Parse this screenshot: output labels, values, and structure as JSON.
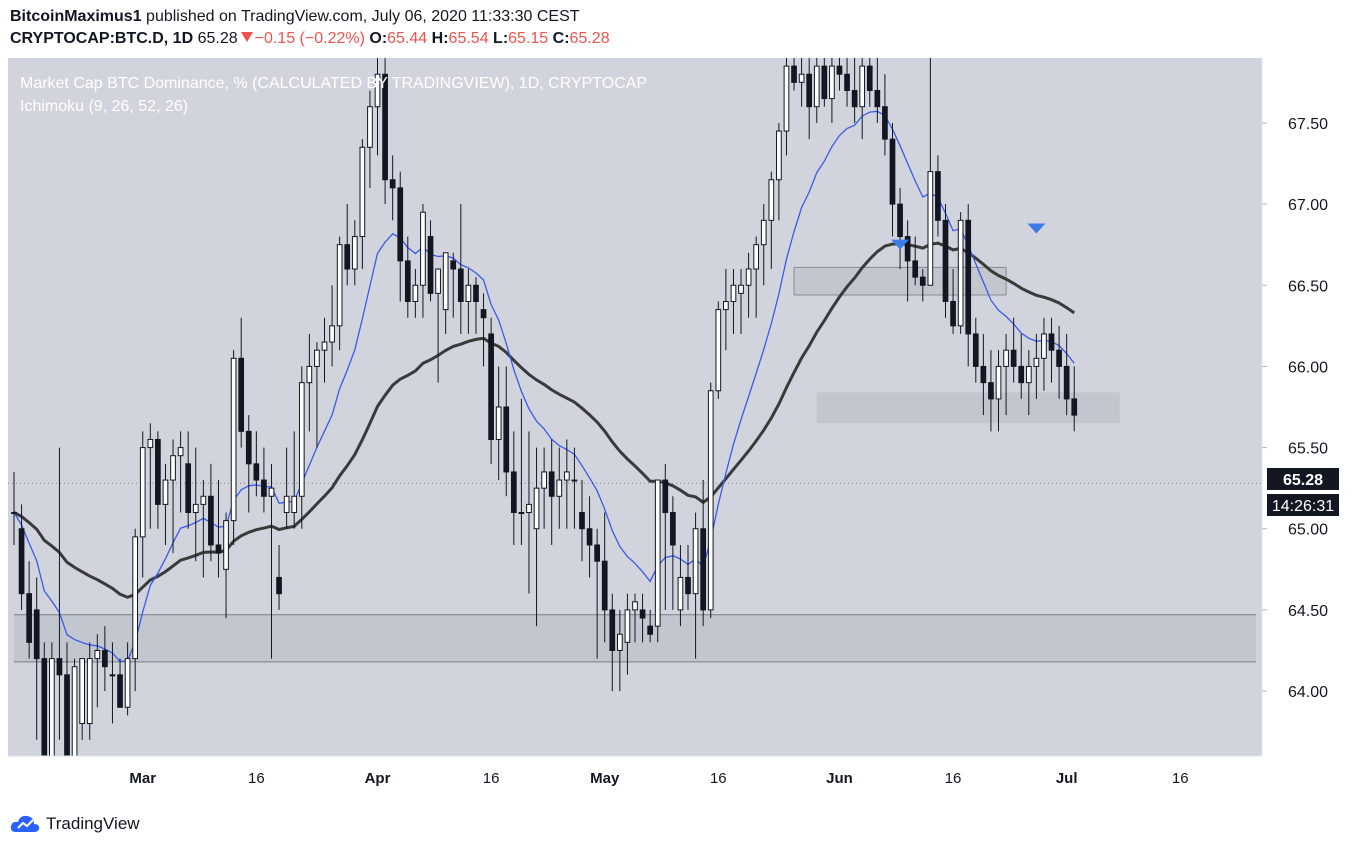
{
  "header": {
    "author": "BitcoinMaximus1",
    "published": "published on TradingView.com, July 06, 2020 11:33:30 CEST",
    "symbol": "CRYPTOCAP:BTC.D, 1D",
    "last": "65.28",
    "change": "−0.15 (−0.22%)",
    "o_label": "O:",
    "o_val": "65.44",
    "h_label": "H:",
    "h_val": "65.54",
    "l_label": "L:",
    "l_val": "65.15",
    "c_label": "C:",
    "c_val": "65.28"
  },
  "legend": {
    "title": "Market Cap BTC Dominance, % (CALCULATED BY TRADINGVIEW), 1D, CRYPTOCAP",
    "indicator": "Ichimoku (9, 26, 52, 26)"
  },
  "footer": {
    "brand": "TradingView",
    "logo_icon": "tradingview-cloud-icon"
  },
  "colors": {
    "plot_bg": "#d1d4dc",
    "up_candle": "#ffffff",
    "down_candle": "#131722",
    "baseline": "#3a3a3a",
    "conversion_line": "#3c5ae8",
    "zone": "#b7b9c3",
    "marker": "#3d7be6"
  },
  "price_label": "65.28",
  "countdown_label": "14:26:31",
  "chart_data": {
    "type": "candlestick",
    "title": "Market Cap BTC Dominance, % (CALCULATED BY TRADINGVIEW), 1D, CRYPTOCAP",
    "ylim": [
      63.6,
      67.9
    ],
    "y_ticks": [
      "64.00",
      "64.50",
      "65.00",
      "65.50",
      "66.00",
      "66.50",
      "67.00",
      "67.50"
    ],
    "x_ticks": [
      {
        "date": "2020-03-01",
        "label": "Mar"
      },
      {
        "date": "2020-03-16",
        "label": "16"
      },
      {
        "date": "2020-04-01",
        "label": "Apr"
      },
      {
        "date": "2020-04-16",
        "label": "16"
      },
      {
        "date": "2020-05-01",
        "label": "May"
      },
      {
        "date": "2020-05-16",
        "label": "16"
      },
      {
        "date": "2020-06-01",
        "label": "Jun"
      },
      {
        "date": "2020-06-16",
        "label": "16"
      },
      {
        "date": "2020-07-01",
        "label": "Jul"
      },
      {
        "date": "2020-07-16",
        "label": "16"
      }
    ],
    "xlim": [
      "2020-02-13",
      "2020-07-26"
    ],
    "candles": [
      {
        "d": "2020-02-13",
        "o": 65.1,
        "h": 65.35,
        "l": 64.9,
        "c": 65.1
      },
      {
        "d": "2020-02-14",
        "o": 65.0,
        "h": 65.15,
        "l": 64.5,
        "c": 64.6
      },
      {
        "d": "2020-02-15",
        "o": 64.6,
        "h": 64.8,
        "l": 64.2,
        "c": 64.3
      },
      {
        "d": "2020-02-16",
        "o": 64.5,
        "h": 64.7,
        "l": 63.7,
        "c": 64.2
      },
      {
        "d": "2020-02-17",
        "o": 64.2,
        "h": 64.3,
        "l": 63.6,
        "c": 63.6
      },
      {
        "d": "2020-02-18",
        "o": 63.6,
        "h": 64.3,
        "l": 63.6,
        "c": 64.2
      },
      {
        "d": "2020-02-19",
        "o": 64.2,
        "h": 65.5,
        "l": 63.7,
        "c": 64.1
      },
      {
        "d": "2020-02-20",
        "o": 64.1,
        "h": 64.3,
        "l": 63.6,
        "c": 63.6
      },
      {
        "d": "2020-02-21",
        "o": 63.6,
        "h": 64.2,
        "l": 63.6,
        "c": 64.15
      },
      {
        "d": "2020-02-22",
        "o": 63.8,
        "h": 64.2,
        "l": 63.7,
        "c": 64.2
      },
      {
        "d": "2020-02-23",
        "o": 63.8,
        "h": 64.3,
        "l": 63.7,
        "c": 64.2
      },
      {
        "d": "2020-02-24",
        "o": 64.2,
        "h": 64.35,
        "l": 63.9,
        "c": 64.25
      },
      {
        "d": "2020-02-25",
        "o": 64.25,
        "h": 64.4,
        "l": 64.0,
        "c": 64.15
      },
      {
        "d": "2020-02-26",
        "o": 64.1,
        "h": 64.3,
        "l": 63.8,
        "c": 64.1
      },
      {
        "d": "2020-02-27",
        "o": 64.1,
        "h": 64.2,
        "l": 63.9,
        "c": 63.9
      },
      {
        "d": "2020-02-28",
        "o": 63.9,
        "h": 64.3,
        "l": 63.85,
        "c": 64.2
      },
      {
        "d": "2020-02-29",
        "o": 64.2,
        "h": 65.0,
        "l": 64.0,
        "c": 64.95
      },
      {
        "d": "2020-03-01",
        "o": 64.95,
        "h": 65.6,
        "l": 64.7,
        "c": 65.5
      },
      {
        "d": "2020-03-02",
        "o": 65.5,
        "h": 65.65,
        "l": 65.0,
        "c": 65.55
      },
      {
        "d": "2020-03-03",
        "o": 65.55,
        "h": 65.6,
        "l": 65.0,
        "c": 65.15
      },
      {
        "d": "2020-03-04",
        "o": 65.15,
        "h": 65.4,
        "l": 64.9,
        "c": 65.3
      },
      {
        "d": "2020-03-05",
        "o": 65.3,
        "h": 65.55,
        "l": 64.85,
        "c": 65.45
      },
      {
        "d": "2020-03-06",
        "o": 65.45,
        "h": 65.6,
        "l": 65.1,
        "c": 65.5
      },
      {
        "d": "2020-03-07",
        "o": 65.4,
        "h": 65.6,
        "l": 65.0,
        "c": 65.1
      },
      {
        "d": "2020-03-08",
        "o": 65.1,
        "h": 65.5,
        "l": 64.8,
        "c": 65.15
      },
      {
        "d": "2020-03-09",
        "o": 65.15,
        "h": 65.3,
        "l": 64.7,
        "c": 65.2
      },
      {
        "d": "2020-03-10",
        "o": 65.2,
        "h": 65.4,
        "l": 64.8,
        "c": 64.9
      },
      {
        "d": "2020-03-11",
        "o": 64.9,
        "h": 65.3,
        "l": 64.7,
        "c": 64.85
      },
      {
        "d": "2020-03-12",
        "o": 64.75,
        "h": 65.1,
        "l": 64.45,
        "c": 65.05
      },
      {
        "d": "2020-03-13",
        "o": 65.05,
        "h": 66.1,
        "l": 64.9,
        "c": 66.05
      },
      {
        "d": "2020-03-14",
        "o": 66.05,
        "h": 66.3,
        "l": 65.5,
        "c": 65.6
      },
      {
        "d": "2020-03-15",
        "o": 65.6,
        "h": 65.7,
        "l": 65.1,
        "c": 65.4
      },
      {
        "d": "2020-03-16",
        "o": 65.4,
        "h": 65.6,
        "l": 65.2,
        "c": 65.3
      },
      {
        "d": "2020-03-17",
        "o": 65.3,
        "h": 65.5,
        "l": 65.1,
        "c": 65.2
      },
      {
        "d": "2020-03-18",
        "o": 65.2,
        "h": 65.4,
        "l": 64.2,
        "c": 65.25
      },
      {
        "d": "2020-03-19",
        "o": 64.7,
        "h": 64.9,
        "l": 64.5,
        "c": 64.6
      },
      {
        "d": "2020-03-20",
        "o": 65.1,
        "h": 65.5,
        "l": 65.0,
        "c": 65.2
      },
      {
        "d": "2020-03-21",
        "o": 65.1,
        "h": 65.6,
        "l": 65.0,
        "c": 65.2
      },
      {
        "d": "2020-03-22",
        "o": 65.2,
        "h": 66.0,
        "l": 65.0,
        "c": 65.9
      },
      {
        "d": "2020-03-23",
        "o": 65.9,
        "h": 66.2,
        "l": 65.6,
        "c": 66.0
      },
      {
        "d": "2020-03-24",
        "o": 66.0,
        "h": 66.15,
        "l": 65.5,
        "c": 66.1
      },
      {
        "d": "2020-03-25",
        "o": 66.1,
        "h": 66.3,
        "l": 65.9,
        "c": 66.15
      },
      {
        "d": "2020-03-26",
        "o": 66.15,
        "h": 66.5,
        "l": 66.0,
        "c": 66.25
      },
      {
        "d": "2020-03-27",
        "o": 66.25,
        "h": 66.8,
        "l": 66.1,
        "c": 66.75
      },
      {
        "d": "2020-03-28",
        "o": 66.75,
        "h": 67.0,
        "l": 66.5,
        "c": 66.6
      },
      {
        "d": "2020-03-29",
        "o": 66.6,
        "h": 66.9,
        "l": 66.5,
        "c": 66.8
      },
      {
        "d": "2020-03-30",
        "o": 66.8,
        "h": 67.4,
        "l": 66.6,
        "c": 67.35
      },
      {
        "d": "2020-03-31",
        "o": 67.35,
        "h": 67.7,
        "l": 67.1,
        "c": 67.6
      },
      {
        "d": "2020-04-01",
        "o": 67.6,
        "h": 67.9,
        "l": 67.3,
        "c": 67.8
      },
      {
        "d": "2020-04-02",
        "o": 67.8,
        "h": 67.9,
        "l": 67.0,
        "c": 67.15
      },
      {
        "d": "2020-04-03",
        "o": 67.15,
        "h": 67.3,
        "l": 66.9,
        "c": 67.1
      },
      {
        "d": "2020-04-04",
        "o": 67.1,
        "h": 67.2,
        "l": 66.4,
        "c": 66.65
      },
      {
        "d": "2020-04-05",
        "o": 66.65,
        "h": 66.8,
        "l": 66.3,
        "c": 66.4
      },
      {
        "d": "2020-04-06",
        "o": 66.4,
        "h": 66.6,
        "l": 66.3,
        "c": 66.5
      },
      {
        "d": "2020-04-07",
        "o": 66.5,
        "h": 67.0,
        "l": 66.3,
        "c": 66.95
      },
      {
        "d": "2020-04-08",
        "o": 66.8,
        "h": 66.9,
        "l": 66.4,
        "c": 66.45
      },
      {
        "d": "2020-04-09",
        "o": 66.45,
        "h": 66.6,
        "l": 65.9,
        "c": 66.6
      },
      {
        "d": "2020-04-10",
        "o": 66.35,
        "h": 66.7,
        "l": 66.2,
        "c": 66.7
      },
      {
        "d": "2020-04-11",
        "o": 66.65,
        "h": 66.7,
        "l": 66.3,
        "c": 66.6
      },
      {
        "d": "2020-04-12",
        "o": 66.6,
        "h": 67.0,
        "l": 66.2,
        "c": 66.4
      },
      {
        "d": "2020-04-13",
        "o": 66.4,
        "h": 66.6,
        "l": 66.2,
        "c": 66.5
      },
      {
        "d": "2020-04-14",
        "o": 66.5,
        "h": 66.55,
        "l": 66.2,
        "c": 66.4
      },
      {
        "d": "2020-04-15",
        "o": 66.35,
        "h": 66.45,
        "l": 66.0,
        "c": 66.3
      },
      {
        "d": "2020-04-16",
        "o": 66.2,
        "h": 66.3,
        "l": 65.4,
        "c": 65.55
      },
      {
        "d": "2020-04-17",
        "o": 65.55,
        "h": 66.0,
        "l": 65.3,
        "c": 65.75
      },
      {
        "d": "2020-04-18",
        "o": 65.75,
        "h": 66.0,
        "l": 65.2,
        "c": 65.35
      },
      {
        "d": "2020-04-19",
        "o": 65.35,
        "h": 65.6,
        "l": 64.9,
        "c": 65.1
      },
      {
        "d": "2020-04-20",
        "o": 65.1,
        "h": 65.8,
        "l": 64.9,
        "c": 65.1
      },
      {
        "d": "2020-04-21",
        "o": 65.1,
        "h": 65.6,
        "l": 64.6,
        "c": 65.15
      },
      {
        "d": "2020-04-22",
        "o": 65.0,
        "h": 65.5,
        "l": 64.4,
        "c": 65.25
      },
      {
        "d": "2020-04-23",
        "o": 65.25,
        "h": 65.5,
        "l": 65.0,
        "c": 65.35
      },
      {
        "d": "2020-04-24",
        "o": 65.35,
        "h": 65.55,
        "l": 64.9,
        "c": 65.2
      },
      {
        "d": "2020-04-25",
        "o": 65.2,
        "h": 65.5,
        "l": 65.0,
        "c": 65.3
      },
      {
        "d": "2020-04-26",
        "o": 65.3,
        "h": 65.55,
        "l": 65.0,
        "c": 65.35
      },
      {
        "d": "2020-04-27",
        "o": 65.3,
        "h": 65.5,
        "l": 65.0,
        "c": 65.3
      },
      {
        "d": "2020-04-28",
        "o": 65.1,
        "h": 65.3,
        "l": 64.8,
        "c": 65.0
      },
      {
        "d": "2020-04-29",
        "o": 65.0,
        "h": 65.2,
        "l": 64.7,
        "c": 64.9
      },
      {
        "d": "2020-04-30",
        "o": 64.9,
        "h": 65.0,
        "l": 64.2,
        "c": 64.8
      },
      {
        "d": "2020-05-01",
        "o": 64.8,
        "h": 65.1,
        "l": 64.3,
        "c": 64.5
      },
      {
        "d": "2020-05-02",
        "o": 64.5,
        "h": 64.6,
        "l": 64.0,
        "c": 64.25
      },
      {
        "d": "2020-05-03",
        "o": 64.25,
        "h": 64.5,
        "l": 64.0,
        "c": 64.35
      },
      {
        "d": "2020-05-04",
        "o": 64.3,
        "h": 64.6,
        "l": 64.1,
        "c": 64.5
      },
      {
        "d": "2020-05-05",
        "o": 64.5,
        "h": 64.6,
        "l": 64.3,
        "c": 64.55
      },
      {
        "d": "2020-05-06",
        "o": 64.5,
        "h": 64.6,
        "l": 64.3,
        "c": 64.45
      },
      {
        "d": "2020-05-07",
        "o": 64.4,
        "h": 64.5,
        "l": 64.3,
        "c": 64.35
      },
      {
        "d": "2020-05-08",
        "o": 64.4,
        "h": 65.3,
        "l": 64.3,
        "c": 65.3
      },
      {
        "d": "2020-05-09",
        "o": 65.3,
        "h": 65.4,
        "l": 64.5,
        "c": 65.1
      },
      {
        "d": "2020-05-10",
        "o": 65.1,
        "h": 65.2,
        "l": 64.5,
        "c": 64.9
      },
      {
        "d": "2020-05-11",
        "o": 64.5,
        "h": 64.9,
        "l": 64.4,
        "c": 64.7
      },
      {
        "d": "2020-05-12",
        "o": 64.7,
        "h": 64.9,
        "l": 64.5,
        "c": 64.6
      },
      {
        "d": "2020-05-13",
        "o": 64.6,
        "h": 65.1,
        "l": 64.2,
        "c": 65.0
      },
      {
        "d": "2020-05-14",
        "o": 65.0,
        "h": 65.3,
        "l": 64.4,
        "c": 64.5
      },
      {
        "d": "2020-05-15",
        "o": 64.5,
        "h": 65.9,
        "l": 64.45,
        "c": 65.85
      },
      {
        "d": "2020-05-16",
        "o": 65.85,
        "h": 66.4,
        "l": 65.8,
        "c": 66.35
      },
      {
        "d": "2020-05-17",
        "o": 66.35,
        "h": 66.6,
        "l": 66.1,
        "c": 66.4
      },
      {
        "d": "2020-05-18",
        "o": 66.4,
        "h": 66.6,
        "l": 66.2,
        "c": 66.5
      },
      {
        "d": "2020-05-19",
        "o": 66.45,
        "h": 66.6,
        "l": 66.2,
        "c": 66.5
      },
      {
        "d": "2020-05-20",
        "o": 66.5,
        "h": 66.7,
        "l": 66.3,
        "c": 66.6
      },
      {
        "d": "2020-05-21",
        "o": 66.6,
        "h": 66.8,
        "l": 66.3,
        "c": 66.75
      },
      {
        "d": "2020-05-22",
        "o": 66.75,
        "h": 67.0,
        "l": 66.5,
        "c": 66.9
      },
      {
        "d": "2020-05-23",
        "o": 66.9,
        "h": 67.2,
        "l": 66.6,
        "c": 67.15
      },
      {
        "d": "2020-05-24",
        "o": 67.15,
        "h": 67.5,
        "l": 66.9,
        "c": 67.45
      },
      {
        "d": "2020-05-25",
        "o": 67.45,
        "h": 67.9,
        "l": 67.3,
        "c": 67.85
      },
      {
        "d": "2020-05-26",
        "o": 67.85,
        "h": 67.9,
        "l": 67.7,
        "c": 67.75
      },
      {
        "d": "2020-05-27",
        "o": 67.75,
        "h": 67.9,
        "l": 67.6,
        "c": 67.8
      },
      {
        "d": "2020-05-28",
        "o": 67.8,
        "h": 67.9,
        "l": 67.4,
        "c": 67.6
      },
      {
        "d": "2020-05-29",
        "o": 67.6,
        "h": 67.9,
        "l": 67.5,
        "c": 67.85
      },
      {
        "d": "2020-05-30",
        "o": 67.85,
        "h": 67.9,
        "l": 67.6,
        "c": 67.65
      },
      {
        "d": "2020-05-31",
        "o": 67.65,
        "h": 67.9,
        "l": 67.5,
        "c": 67.85
      },
      {
        "d": "2020-06-01",
        "o": 67.85,
        "h": 67.9,
        "l": 67.7,
        "c": 67.8
      },
      {
        "d": "2020-06-02",
        "o": 67.8,
        "h": 67.9,
        "l": 67.6,
        "c": 67.7
      },
      {
        "d": "2020-06-03",
        "o": 67.7,
        "h": 67.9,
        "l": 67.5,
        "c": 67.6
      },
      {
        "d": "2020-06-04",
        "o": 67.6,
        "h": 67.9,
        "l": 67.4,
        "c": 67.85
      },
      {
        "d": "2020-06-05",
        "o": 67.85,
        "h": 67.9,
        "l": 67.6,
        "c": 67.7
      },
      {
        "d": "2020-06-06",
        "o": 67.7,
        "h": 67.9,
        "l": 67.5,
        "c": 67.6
      },
      {
        "d": "2020-06-07",
        "o": 67.6,
        "h": 67.8,
        "l": 67.3,
        "c": 67.4
      },
      {
        "d": "2020-06-08",
        "o": 67.4,
        "h": 67.5,
        "l": 66.8,
        "c": 67.0
      },
      {
        "d": "2020-06-09",
        "o": 67.0,
        "h": 67.1,
        "l": 66.6,
        "c": 66.8
      },
      {
        "d": "2020-06-10",
        "o": 66.8,
        "h": 66.9,
        "l": 66.4,
        "c": 66.65
      },
      {
        "d": "2020-06-11",
        "o": 66.65,
        "h": 66.8,
        "l": 66.5,
        "c": 66.55
      },
      {
        "d": "2020-06-12",
        "o": 66.55,
        "h": 66.6,
        "l": 66.4,
        "c": 66.5
      },
      {
        "d": "2020-06-13",
        "o": 66.5,
        "h": 67.9,
        "l": 66.5,
        "c": 67.2
      },
      {
        "d": "2020-06-14",
        "o": 67.2,
        "h": 67.3,
        "l": 66.8,
        "c": 66.9
      },
      {
        "d": "2020-06-15",
        "o": 66.9,
        "h": 67.0,
        "l": 66.3,
        "c": 66.4
      },
      {
        "d": "2020-06-16",
        "o": 66.4,
        "h": 66.6,
        "l": 66.2,
        "c": 66.25
      },
      {
        "d": "2020-06-17",
        "o": 66.25,
        "h": 66.95,
        "l": 66.2,
        "c": 66.9
      },
      {
        "d": "2020-06-18",
        "o": 66.9,
        "h": 67.0,
        "l": 66.0,
        "c": 66.2
      },
      {
        "d": "2020-06-19",
        "o": 66.2,
        "h": 66.3,
        "l": 65.9,
        "c": 66.0
      },
      {
        "d": "2020-06-20",
        "o": 66.0,
        "h": 66.2,
        "l": 65.7,
        "c": 65.9
      },
      {
        "d": "2020-06-21",
        "o": 65.9,
        "h": 66.1,
        "l": 65.6,
        "c": 65.8
      },
      {
        "d": "2020-06-22",
        "o": 65.8,
        "h": 66.1,
        "l": 65.6,
        "c": 66.0
      },
      {
        "d": "2020-06-23",
        "o": 66.0,
        "h": 66.2,
        "l": 65.7,
        "c": 66.1
      },
      {
        "d": "2020-06-24",
        "o": 66.1,
        "h": 66.3,
        "l": 65.9,
        "c": 66.0
      },
      {
        "d": "2020-06-25",
        "o": 66.0,
        "h": 66.2,
        "l": 65.8,
        "c": 65.9
      },
      {
        "d": "2020-06-26",
        "o": 65.9,
        "h": 66.1,
        "l": 65.7,
        "c": 66.0
      },
      {
        "d": "2020-06-27",
        "o": 66.0,
        "h": 66.2,
        "l": 65.8,
        "c": 66.05
      },
      {
        "d": "2020-06-28",
        "o": 66.05,
        "h": 66.3,
        "l": 65.85,
        "c": 66.2
      },
      {
        "d": "2020-06-29",
        "o": 66.2,
        "h": 66.3,
        "l": 65.9,
        "c": 66.1
      },
      {
        "d": "2020-06-30",
        "o": 66.1,
        "h": 66.25,
        "l": 65.8,
        "c": 66.0
      },
      {
        "d": "2020-07-01",
        "o": 66.0,
        "h": 66.2,
        "l": 65.7,
        "c": 65.8
      },
      {
        "d": "2020-07-02",
        "o": 65.8,
        "h": 66.0,
        "l": 65.6,
        "c": 65.7
      }
    ],
    "baseline_series": [],
    "conversion_series": [],
    "zones": [
      {
        "label": "",
        "from": "2020-05-26",
        "to": "2020-06-23",
        "y_low": 66.44,
        "y_high": 66.61
      },
      {
        "label": "",
        "from": "2020-05-29",
        "to": "2020-07-08",
        "y_low": 65.65,
        "y_high": 65.84
      },
      {
        "label": "",
        "from": "2020-02-13",
        "to": "2020-07-26",
        "y_low": 64.18,
        "y_high": 64.47
      }
    ],
    "markers": [
      {
        "date": "2020-06-09",
        "y": 66.75
      },
      {
        "date": "2020-06-27",
        "y": 66.85
      }
    ],
    "last_value": 65.28
  }
}
